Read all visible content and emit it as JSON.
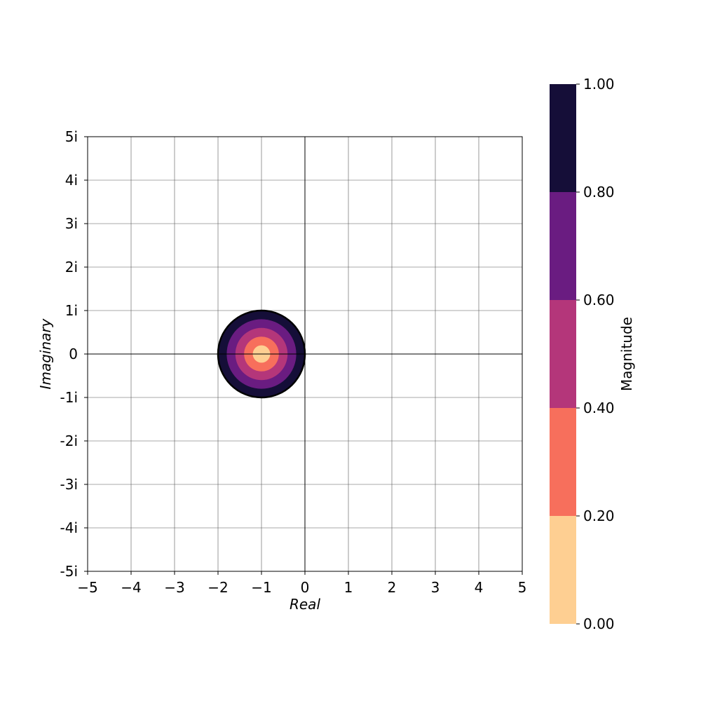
{
  "chart_data": {
    "type": "heatmap",
    "title": "",
    "xlabel": "Real",
    "ylabel": "Imaginary",
    "xlim": [
      -5,
      5
    ],
    "ylim": [
      -5,
      5
    ],
    "grid": true,
    "x_ticks": [
      "−5",
      "−4",
      "−3",
      "−2",
      "−1",
      "0",
      "1",
      "2",
      "3",
      "4",
      "5"
    ],
    "y_ticks": [
      "5i",
      "4i",
      "3i",
      "2i",
      "1i",
      "0",
      "-1i",
      "-2i",
      "-3i",
      "-4i",
      "-5i"
    ],
    "disk": {
      "center": {
        "real": -1,
        "imag": 0
      },
      "radius": 1,
      "magnitude_bands": [
        {
          "from": 0.0,
          "to": 0.2,
          "color": "#fecf92"
        },
        {
          "from": 0.2,
          "to": 0.4,
          "color": "#f76f5c"
        },
        {
          "from": 0.4,
          "to": 0.6,
          "color": "#b4367a"
        },
        {
          "from": 0.6,
          "to": 0.8,
          "color": "#6a1c81"
        },
        {
          "from": 0.8,
          "to": 1.0,
          "color": "#150e38"
        }
      ],
      "outline_color": "#000000"
    },
    "colorbar": {
      "label": "Magnitude",
      "ticks": [
        "0.00",
        "0.20",
        "0.40",
        "0.60",
        "0.80",
        "1.00"
      ],
      "range": [
        0,
        1
      ]
    }
  }
}
